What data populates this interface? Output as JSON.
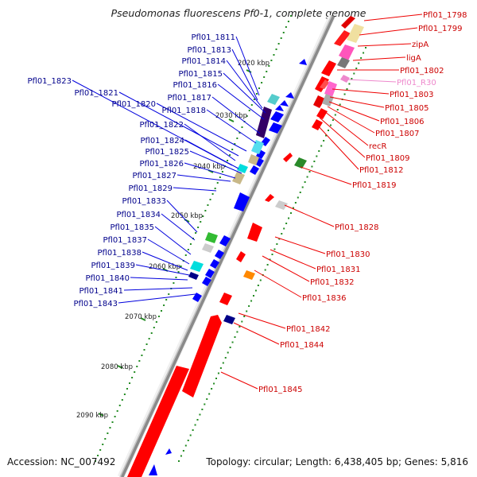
{
  "title": "Pseudomonas fluorescens Pf0-1, complete genome",
  "footer": {
    "accession": "Accession: NC_007492",
    "summary": "Topology: circular; Length: 6,438,405 bp; Genes: 5,816"
  },
  "colors": {
    "forward": "#ff0000",
    "reverse": "#0000ff",
    "rna": "#ee88cc",
    "backbone": "#888888"
  },
  "ticks": [
    "2020 kbp",
    "2030 kbp",
    "2040 kbp",
    "2050 kbp",
    "2060 kbp",
    "2070 kbp",
    "2080 kbp",
    "2090 kbp"
  ],
  "left_genes": [
    "Pfl01_1811",
    "Pfl01_1813",
    "Pfl01_1814",
    "Pfl01_1815",
    "Pfl01_1816",
    "Pfl01_1817",
    "Pfl01_1818",
    "Pfl01_1820",
    "Pfl01_1821",
    "Pfl01_1822",
    "Pfl01_1823",
    "Pfl01_1824",
    "Pfl01_1825",
    "Pfl01_1826",
    "Pfl01_1827",
    "Pfl01_1829",
    "Pfl01_1833",
    "Pfl01_1834",
    "Pfl01_1835",
    "Pfl01_1837",
    "Pfl01_1838",
    "Pfl01_1839",
    "Pfl01_1840",
    "Pfl01_1841",
    "Pfl01_1843"
  ],
  "right_genes": [
    "Pfl01_1798",
    "Pfl01_1799",
    "zipA",
    "ligA",
    "Pfl01_1802",
    "Pfl01_R30",
    "Pfl01_1803",
    "Pfl01_1805",
    "Pfl01_1806",
    "Pfl01_1807",
    "recR",
    "Pfl01_1809",
    "Pfl01_1812",
    "Pfl01_1819",
    "Pfl01_1828",
    "Pfl01_1830",
    "Pfl01_1831",
    "Pfl01_1832",
    "Pfl01_1836",
    "Pfl01_1842",
    "Pfl01_1844",
    "Pfl01_1845"
  ]
}
